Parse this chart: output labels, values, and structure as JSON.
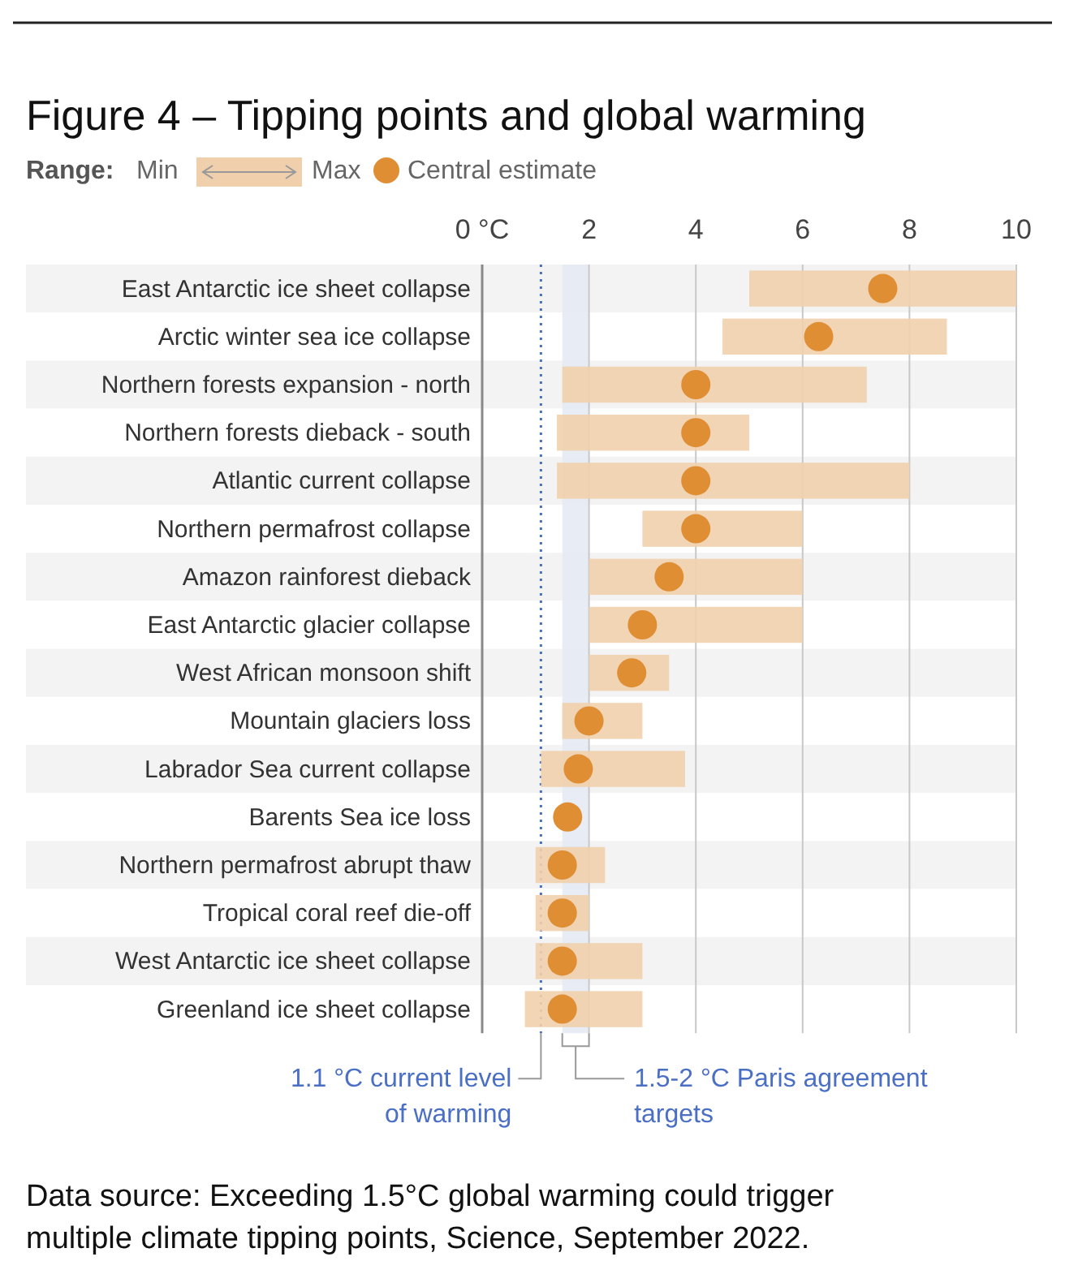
{
  "chart_data": {
    "type": "bar",
    "orientation": "horizontal",
    "title": "Figure 4 – Tipping points and global warming",
    "legend_title": "Range:",
    "legend": "top left",
    "categories": [
      "East Antarctic ice sheet collapse",
      "Arctic winter sea ice collapse",
      "Northern forests expansion - north",
      "Northern forests dieback - south",
      "Atlantic current collapse",
      "Northern permafrost collapse",
      "Amazon rainforest dieback",
      "East Antarctic glacier collapse",
      "West African monsoon shift",
      "Mountain glaciers loss",
      "Labrador Sea current collapse",
      "Barents Sea ice loss",
      "Northern permafrost abrupt thaw",
      "Tropical coral reef die-off",
      "West Antarctic ice sheet collapse",
      "Greenland ice sheet collapse"
    ],
    "series": [
      {
        "name": "Max",
        "type": "bar",
        "color": "#f0d0ac",
        "base": [
          5.0,
          4.5,
          1.5,
          1.4,
          1.4,
          3.0,
          2.0,
          2.0,
          2.0,
          1.5,
          1.1,
          null,
          1.0,
          1.0,
          1.0,
          0.8
        ],
        "values": [
          5.0,
          4.2,
          5.7,
          3.6,
          6.6,
          3.0,
          4.0,
          4.0,
          1.5,
          1.5,
          2.7,
          null,
          1.3,
          1.0,
          2.0,
          2.2
        ]
      },
      {
        "name": "Central estimate",
        "type": "scatter",
        "marker": "circle",
        "color": "#e08e34",
        "values": [
          7.5,
          6.3,
          4.0,
          4.0,
          4.0,
          4.0,
          3.5,
          3.0,
          2.8,
          2.0,
          1.8,
          1.6,
          1.5,
          1.5,
          1.5,
          1.5
        ]
      }
    ],
    "xlim": [
      0,
      10
    ],
    "xticks": [
      {
        "value": 0,
        "label": "0 °C"
      },
      2,
      4,
      6,
      8,
      10
    ],
    "grid": "x",
    "ref_lines": [
      {
        "axis": "x",
        "value": 1.1,
        "label": "1.1 °C current level of warming",
        "color": "#4a6fc4",
        "line_style": "dotted"
      }
    ],
    "bands": [
      {
        "axis": "x",
        "from": 1.5,
        "to": 2,
        "label": "1.5-2 °C Paris agreement targets",
        "color": "#e3e9f3"
      }
    ],
    "annotations": [
      "Min",
      "Data source: Exceeding 1.5°C global warming could trigger multiple climate tipping points, Science, September 2022."
    ]
  }
}
